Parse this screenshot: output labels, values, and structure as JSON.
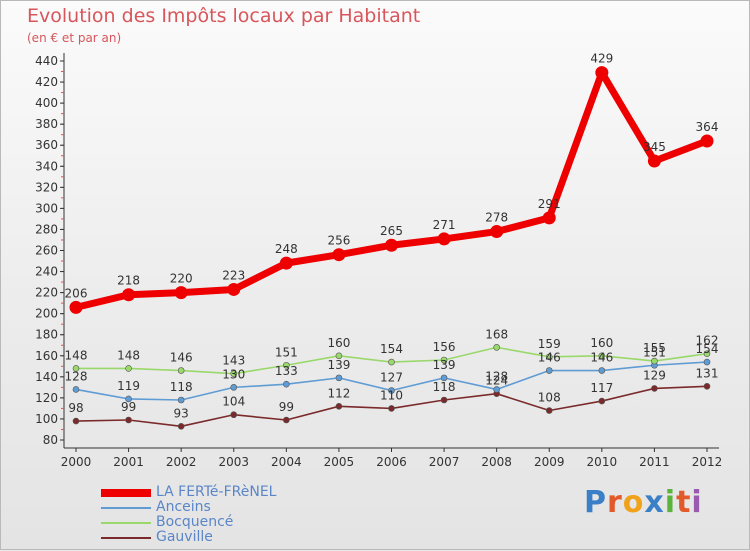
{
  "title": "Evolution des Impôts locaux par Habitant",
  "subtitle": "(en € et par an)",
  "logo": {
    "letters": [
      "P",
      "r",
      "o",
      "x",
      "i",
      "t",
      "i"
    ],
    "colors": [
      "#3b7fc7",
      "#e35a2a",
      "#f0a21a",
      "#3b7fc7",
      "#5ab43b",
      "#e35a2a",
      "#9a5ab0"
    ]
  },
  "chart_data": {
    "type": "line",
    "title": "Evolution des Impôts locaux par Habitant",
    "subtitle": "(en € et par an)",
    "x": [
      "2000",
      "2001",
      "2002",
      "2003",
      "2004",
      "2005",
      "2006",
      "2007",
      "2008",
      "2009",
      "2010",
      "2011",
      "2012"
    ],
    "ylim": [
      80,
      440
    ],
    "yticks": [
      80,
      100,
      120,
      140,
      160,
      180,
      200,
      220,
      240,
      260,
      280,
      300,
      320,
      340,
      360,
      380,
      400,
      420,
      440
    ],
    "grid": false,
    "legend": "bottom-left",
    "series": [
      {
        "name": "LA FERTé-FRèNEL",
        "color": "#ee0000",
        "values": [
          206,
          218,
          220,
          223,
          248,
          256,
          265,
          271,
          278,
          291,
          429,
          345,
          364
        ],
        "labels": [
          "206",
          "218",
          "220",
          "223",
          "248",
          "256",
          "265",
          "271",
          "278",
          "291",
          "429",
          "345",
          "364"
        ]
      },
      {
        "name": "Anceins",
        "color": "#5f9cd4",
        "values": [
          128,
          119,
          118,
          130,
          133,
          139,
          127,
          139,
          128,
          146,
          146,
          151,
          154
        ],
        "labels": [
          "128",
          "119",
          "118",
          "130",
          "133",
          "139",
          "127",
          "139",
          "128",
          "146",
          "146",
          "151",
          "154"
        ]
      },
      {
        "name": "Bocquencé",
        "color": "#99d86a",
        "values": [
          148,
          148,
          146,
          143,
          151,
          160,
          154,
          156,
          168,
          159,
          160,
          155,
          162
        ],
        "labels": [
          "148",
          "148",
          "146",
          "143",
          "151",
          "160",
          "154",
          "156",
          "168",
          "159",
          "160",
          "155",
          "162"
        ]
      },
      {
        "name": "Gauville",
        "color": "#7a2a2a",
        "values": [
          98,
          99,
          93,
          104,
          99,
          112,
          110,
          118,
          124,
          108,
          117,
          129,
          131
        ],
        "labels": [
          "98",
          "99",
          "93",
          "104",
          "99",
          "112",
          "110",
          "118",
          "124",
          "108",
          "117",
          "129",
          "131"
        ]
      }
    ]
  }
}
